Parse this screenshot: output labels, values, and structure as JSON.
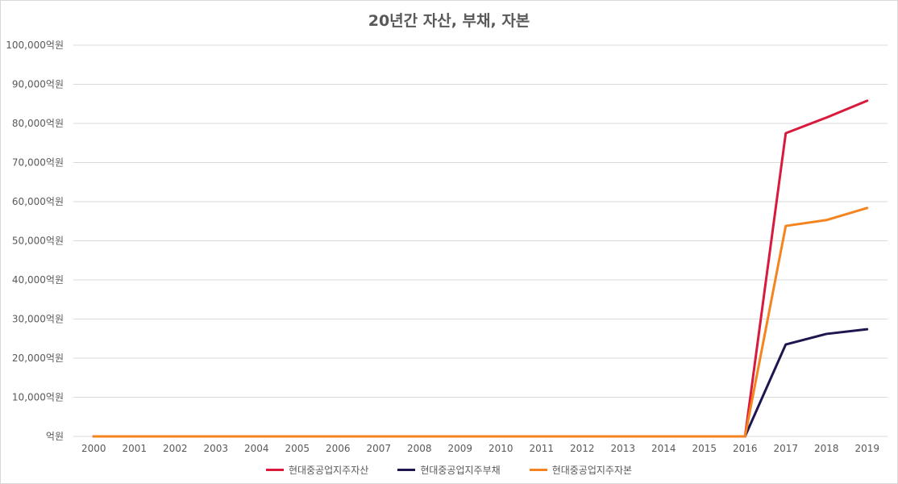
{
  "chart_data": {
    "type": "line",
    "title": "20년간 자산, 부채, 자본",
    "categories": [
      "2000",
      "2001",
      "2002",
      "2003",
      "2004",
      "2005",
      "2006",
      "2007",
      "2008",
      "2009",
      "2010",
      "2011",
      "2012",
      "2013",
      "2014",
      "2015",
      "2016",
      "2017",
      "2018",
      "2019"
    ],
    "y_ticks": [
      "억원",
      "10,000억원",
      "20,000억원",
      "30,000억원",
      "40,000억원",
      "50,000억원",
      "60,000억원",
      "70,000억원",
      "80,000억원",
      "90,000억원",
      "100,000억원"
    ],
    "ylim": [
      0,
      100000
    ],
    "grid": true,
    "legend_position": "bottom",
    "series": [
      {
        "name": "현대중공업지주자산",
        "color": "#d81a3c",
        "values": [
          0,
          0,
          0,
          0,
          0,
          0,
          0,
          0,
          0,
          0,
          0,
          0,
          0,
          0,
          0,
          0,
          0,
          77500,
          81500,
          85800
        ]
      },
      {
        "name": "현대중공업지주부채",
        "color": "#1f1650",
        "values": [
          0,
          0,
          0,
          0,
          0,
          0,
          0,
          0,
          0,
          0,
          0,
          0,
          0,
          0,
          0,
          0,
          0,
          23500,
          26200,
          27400
        ]
      },
      {
        "name": "현대중공업지주자본",
        "color": "#f5841f",
        "values": [
          0,
          0,
          0,
          0,
          0,
          0,
          0,
          0,
          0,
          0,
          0,
          0,
          0,
          0,
          0,
          0,
          0,
          53800,
          55300,
          58400
        ]
      }
    ]
  }
}
